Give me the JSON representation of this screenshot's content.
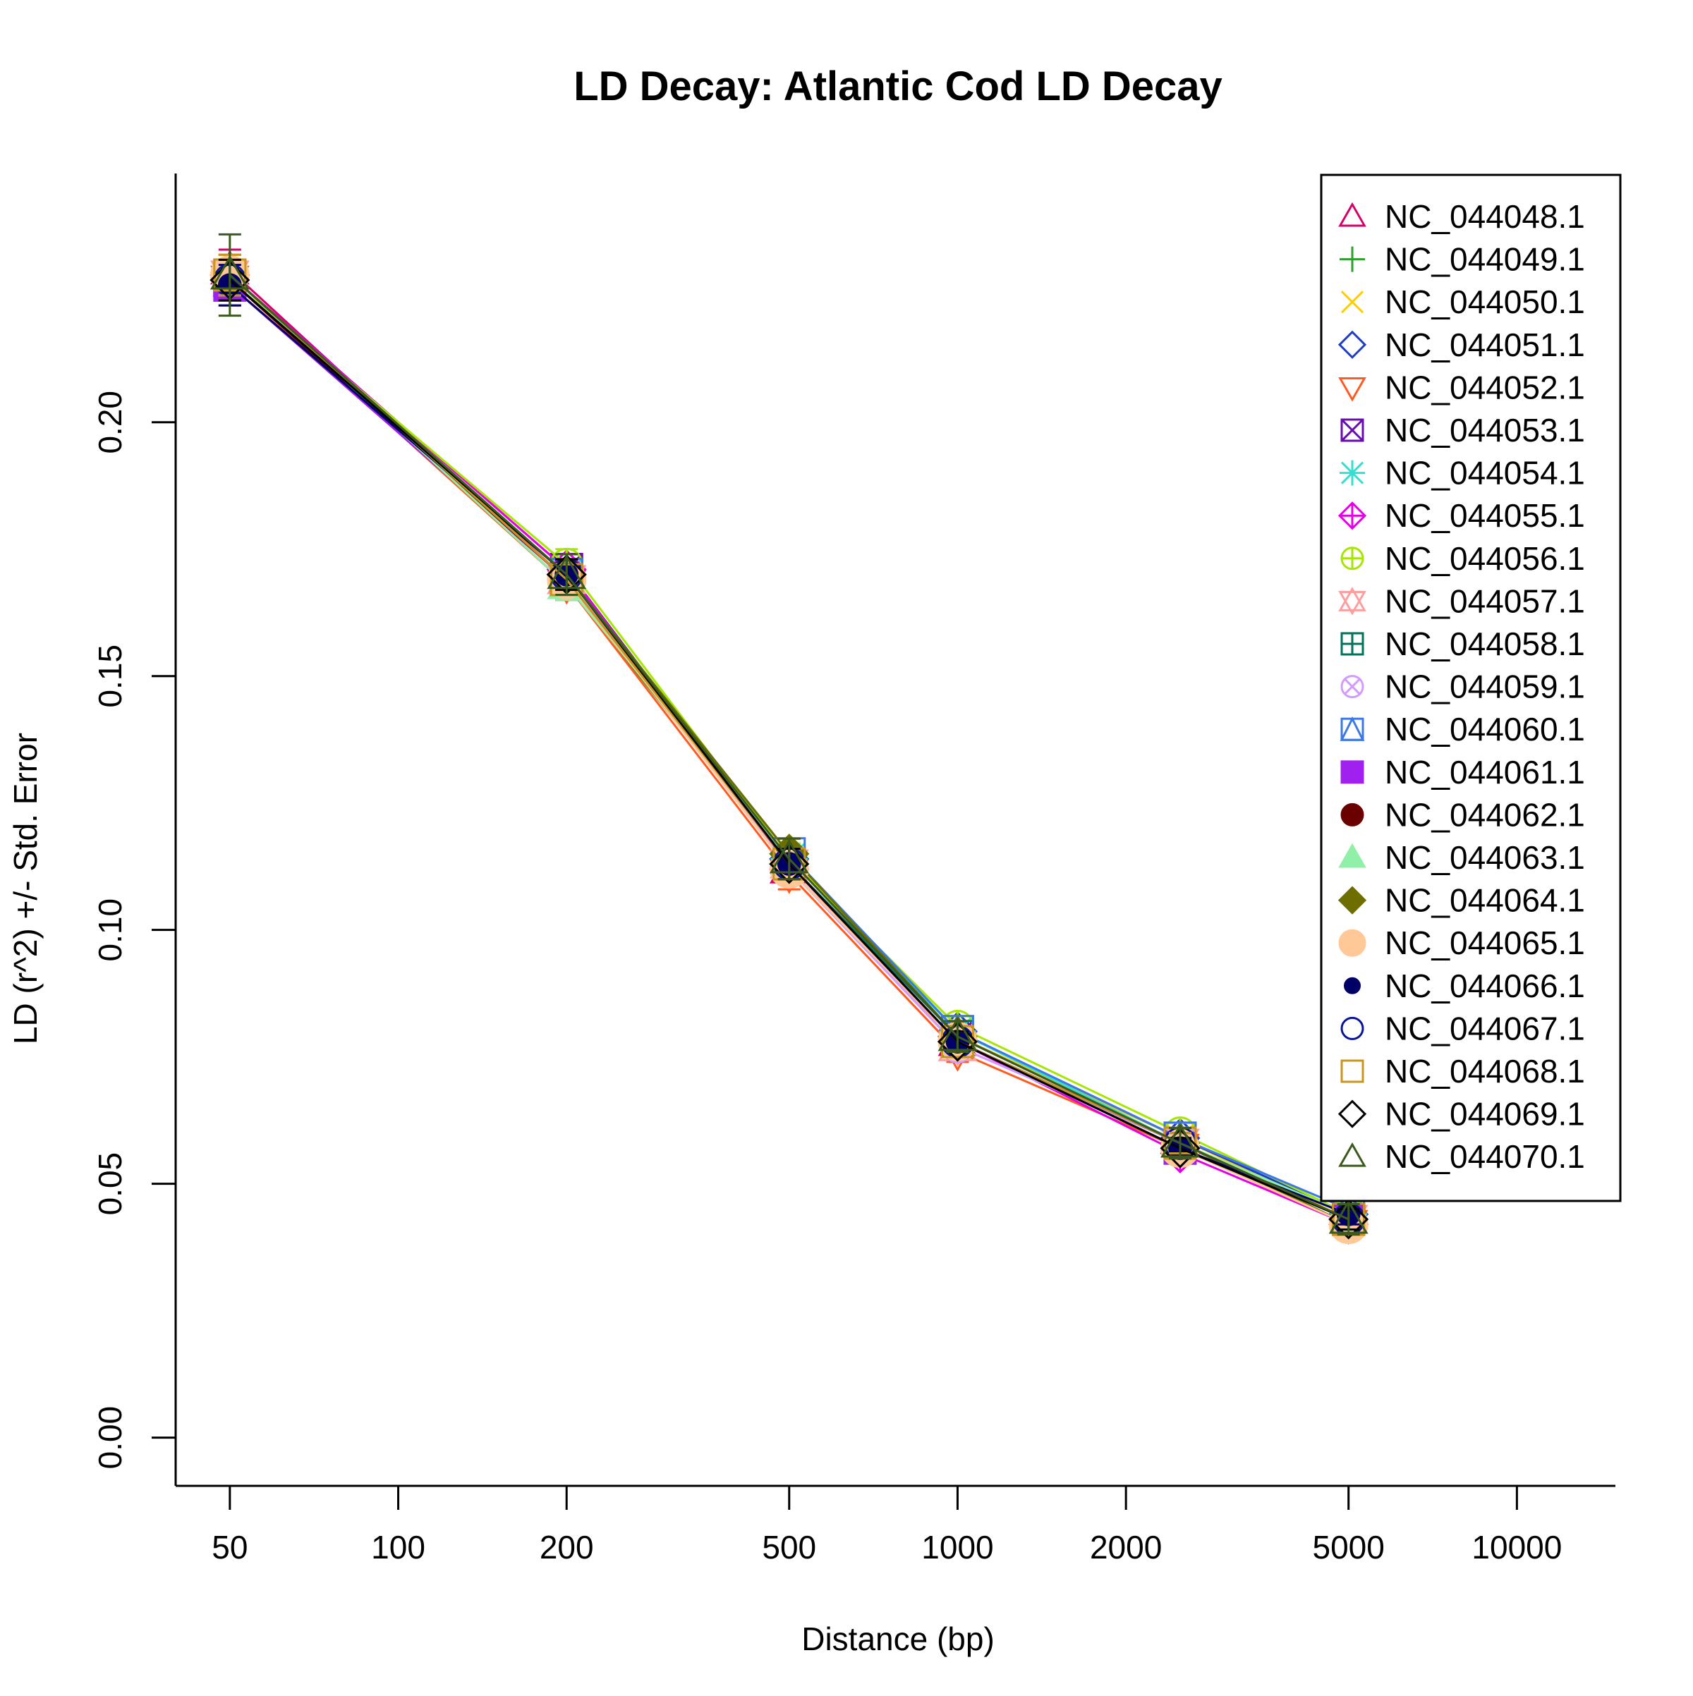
{
  "chart_data": {
    "type": "line",
    "title": "LD Decay: Atlantic Cod LD Decay",
    "xlabel": "Distance (bp)",
    "ylabel": "LD (r^2) +/- Std. Error",
    "x_scale": "log",
    "xlim": [
      40,
      15000
    ],
    "ylim": [
      -0.0095,
      0.249
    ],
    "x_ticks": [
      50,
      100,
      200,
      500,
      1000,
      2000,
      5000,
      10000
    ],
    "x_tick_labels": [
      "50",
      "100",
      "200",
      "500",
      "1000",
      "2000",
      "5000",
      "10000"
    ],
    "y_ticks": [
      0.0,
      0.05,
      0.1,
      0.15,
      0.2
    ],
    "y_tick_labels": [
      "0.00",
      "0.05",
      "0.10",
      "0.15",
      "0.20"
    ],
    "x": [
      50,
      200,
      500,
      1000,
      2500,
      5000
    ],
    "legend_position": "top-right",
    "series": [
      {
        "name": "NC_044048.1",
        "color": "#d6006b",
        "marker": "triangle-open",
        "values": [
          0.23,
          0.169,
          0.112,
          0.078,
          0.058,
          0.043
        ],
        "errors": [
          0.004,
          0.003,
          0.003,
          0.002,
          0.002,
          0.002
        ]
      },
      {
        "name": "NC_044049.1",
        "color": "#2ca02c",
        "marker": "plus",
        "values": [
          0.229,
          0.168,
          0.113,
          0.079,
          0.058,
          0.042
        ],
        "errors": [
          0.004,
          0.003,
          0.003,
          0.002,
          0.002,
          0.002
        ]
      },
      {
        "name": "NC_044050.1",
        "color": "#ffcc00",
        "marker": "cross",
        "values": [
          0.227,
          0.169,
          0.113,
          0.079,
          0.059,
          0.043
        ],
        "errors": [
          0.004,
          0.003,
          0.003,
          0.002,
          0.002,
          0.002
        ]
      },
      {
        "name": "NC_044051.1",
        "color": "#1f3cc8",
        "marker": "diamond-open",
        "values": [
          0.229,
          0.17,
          0.114,
          0.08,
          0.059,
          0.044
        ],
        "errors": [
          0.004,
          0.003,
          0.003,
          0.002,
          0.002,
          0.002
        ]
      },
      {
        "name": "NC_044052.1",
        "color": "#ff5a1f",
        "marker": "triangle-down-open",
        "values": [
          0.228,
          0.168,
          0.111,
          0.076,
          0.057,
          0.042
        ],
        "errors": [
          0.004,
          0.003,
          0.003,
          0.002,
          0.002,
          0.002
        ]
      },
      {
        "name": "NC_044053.1",
        "color": "#6a0dad",
        "marker": "square-cross",
        "values": [
          0.229,
          0.171,
          0.113,
          0.079,
          0.058,
          0.043
        ],
        "errors": [
          0.004,
          0.003,
          0.003,
          0.002,
          0.002,
          0.002
        ]
      },
      {
        "name": "NC_044054.1",
        "color": "#33e0d0",
        "marker": "asterisk",
        "values": [
          0.228,
          0.17,
          0.114,
          0.08,
          0.058,
          0.044
        ],
        "errors": [
          0.004,
          0.003,
          0.003,
          0.002,
          0.002,
          0.002
        ]
      },
      {
        "name": "NC_044055.1",
        "color": "#e600e6",
        "marker": "diamond-plus",
        "values": [
          0.229,
          0.171,
          0.112,
          0.078,
          0.056,
          0.042
        ],
        "errors": [
          0.004,
          0.003,
          0.003,
          0.002,
          0.002,
          0.002
        ]
      },
      {
        "name": "NC_044056.1",
        "color": "#a6e600",
        "marker": "circle-plus",
        "values": [
          0.228,
          0.172,
          0.114,
          0.081,
          0.06,
          0.044
        ],
        "errors": [
          0.004,
          0.003,
          0.003,
          0.002,
          0.002,
          0.002
        ]
      },
      {
        "name": "NC_044057.1",
        "color": "#ff9e9e",
        "marker": "star-of-david",
        "values": [
          0.229,
          0.169,
          0.113,
          0.077,
          0.058,
          0.043
        ],
        "errors": [
          0.004,
          0.003,
          0.003,
          0.002,
          0.002,
          0.002
        ]
      },
      {
        "name": "NC_044058.1",
        "color": "#00735a",
        "marker": "square-plus",
        "values": [
          0.228,
          0.17,
          0.113,
          0.079,
          0.058,
          0.043
        ],
        "errors": [
          0.004,
          0.003,
          0.003,
          0.002,
          0.002,
          0.002
        ]
      },
      {
        "name": "NC_044059.1",
        "color": "#d29bff",
        "marker": "circle-cross",
        "values": [
          0.229,
          0.17,
          0.112,
          0.077,
          0.058,
          0.043
        ],
        "errors": [
          0.004,
          0.003,
          0.003,
          0.002,
          0.002,
          0.002
        ]
      },
      {
        "name": "NC_044060.1",
        "color": "#3c78e6",
        "marker": "square-triangle",
        "values": [
          0.228,
          0.17,
          0.115,
          0.08,
          0.059,
          0.045
        ],
        "errors": [
          0.004,
          0.003,
          0.003,
          0.002,
          0.002,
          0.002
        ]
      },
      {
        "name": "NC_044061.1",
        "color": "#a020f0",
        "marker": "square-filled",
        "values": [
          0.227,
          0.169,
          0.113,
          0.078,
          0.057,
          0.043
        ],
        "errors": [
          0.004,
          0.003,
          0.003,
          0.002,
          0.002,
          0.002
        ]
      },
      {
        "name": "NC_044062.1",
        "color": "#6b0000",
        "marker": "circle-filled",
        "values": [
          0.228,
          0.169,
          0.113,
          0.078,
          0.057,
          0.043
        ],
        "errors": [
          0.004,
          0.003,
          0.003,
          0.002,
          0.002,
          0.002
        ]
      },
      {
        "name": "NC_044063.1",
        "color": "#90f0a8",
        "marker": "triangle-filled",
        "values": [
          0.229,
          0.168,
          0.114,
          0.079,
          0.058,
          0.044
        ],
        "errors": [
          0.004,
          0.003,
          0.003,
          0.002,
          0.002,
          0.002
        ]
      },
      {
        "name": "NC_044064.1",
        "color": "#6e6e00",
        "marker": "diamond-filled",
        "values": [
          0.229,
          0.17,
          0.115,
          0.079,
          0.058,
          0.042
        ],
        "errors": [
          0.004,
          0.003,
          0.003,
          0.002,
          0.002,
          0.002
        ]
      },
      {
        "name": "NC_044065.1",
        "color": "#ffc896",
        "marker": "circle-filled-large",
        "values": [
          0.229,
          0.169,
          0.112,
          0.078,
          0.057,
          0.042
        ],
        "errors": [
          0.004,
          0.003,
          0.003,
          0.002,
          0.002,
          0.002
        ]
      },
      {
        "name": "NC_044066.1",
        "color": "#000066",
        "marker": "dot",
        "values": [
          0.227,
          0.17,
          0.113,
          0.078,
          0.057,
          0.044
        ],
        "errors": [
          0.004,
          0.003,
          0.003,
          0.002,
          0.002,
          0.002
        ]
      },
      {
        "name": "NC_044067.1",
        "color": "#0a1496",
        "marker": "circle-open",
        "values": [
          0.228,
          0.17,
          0.113,
          0.078,
          0.058,
          0.043
        ],
        "errors": [
          0.004,
          0.003,
          0.003,
          0.002,
          0.002,
          0.002
        ]
      },
      {
        "name": "NC_044068.1",
        "color": "#c8961e",
        "marker": "square-open",
        "values": [
          0.229,
          0.169,
          0.113,
          0.078,
          0.058,
          0.043
        ],
        "errors": [
          0.004,
          0.003,
          0.003,
          0.002,
          0.002,
          0.002
        ]
      },
      {
        "name": "NC_044069.1",
        "color": "#000000",
        "marker": "diamond-open",
        "values": [
          0.228,
          0.17,
          0.113,
          0.078,
          0.057,
          0.043
        ],
        "errors": [
          0.004,
          0.003,
          0.003,
          0.002,
          0.002,
          0.002
        ]
      },
      {
        "name": "NC_044070.1",
        "color": "#3c5a1e",
        "marker": "triangle-open",
        "values": [
          0.229,
          0.17,
          0.114,
          0.079,
          0.058,
          0.043
        ],
        "errors": [
          0.008,
          0.004,
          0.004,
          0.003,
          0.003,
          0.003
        ]
      }
    ]
  }
}
